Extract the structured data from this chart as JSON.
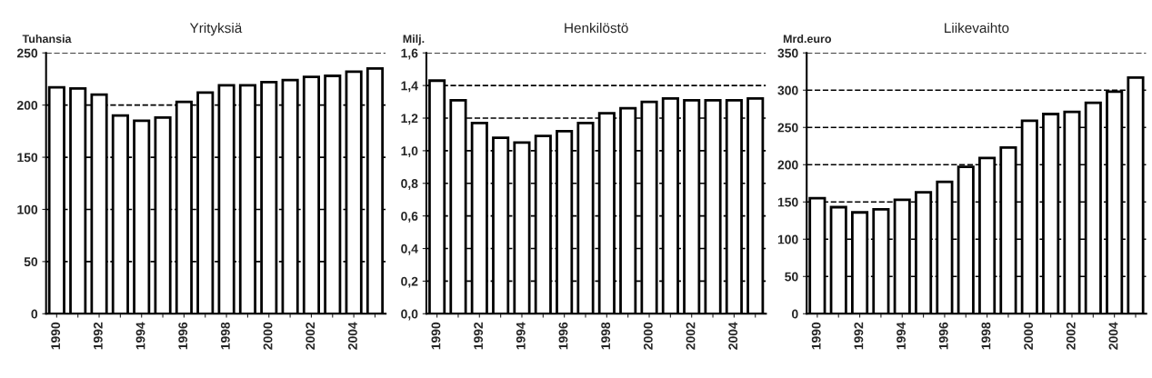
{
  "chart_data": [
    {
      "type": "bar",
      "title": "Yrityksiä",
      "ylabel": "Tuhansia",
      "categories": [
        "1990",
        null,
        "1992",
        null,
        "1994",
        null,
        "1996",
        null,
        "1998",
        null,
        "2000",
        null,
        "2002",
        null,
        "2004",
        null
      ],
      "series": [
        {
          "color": "#ffffff",
          "values": [
            217,
            216,
            210,
            190,
            185,
            188,
            203,
            212,
            219,
            219,
            222,
            224,
            227,
            228,
            232,
            235
          ]
        }
      ],
      "ylim": [
        0,
        250
      ],
      "yticks": [
        0,
        50,
        100,
        150,
        200,
        250
      ],
      "grid": "y",
      "line_style": "dashed"
    },
    {
      "type": "bar",
      "title": "Henkilöstö",
      "ylabel": "Milj.",
      "categories": [
        "1990",
        null,
        "1992",
        null,
        "1994",
        null,
        "1996",
        null,
        "1998",
        null,
        "2000",
        null,
        "2002",
        null,
        "2004",
        null
      ],
      "series": [
        {
          "color": "#ffffff",
          "values": [
            1.43,
            1.31,
            1.17,
            1.08,
            1.05,
            1.09,
            1.12,
            1.17,
            1.23,
            1.26,
            1.3,
            1.32,
            1.31,
            1.31,
            1.31,
            1.32
          ]
        }
      ],
      "ylim": [
        0,
        1.6
      ],
      "yticks": [
        {
          "value": 0,
          "label": "0,0"
        },
        {
          "value": 0.2,
          "label": "0,2"
        },
        {
          "value": 0.4,
          "label": "0,4"
        },
        {
          "value": 0.6,
          "label": "0,6"
        },
        {
          "value": 0.8,
          "label": "0,8"
        },
        {
          "value": 1.0,
          "label": "1,0"
        },
        {
          "value": 1.2,
          "label": "1,2"
        },
        {
          "value": 1.4,
          "label": "1,4"
        },
        {
          "value": 1.6,
          "label": "1,6"
        }
      ],
      "grid": "y",
      "line_style": "dashed"
    },
    {
      "type": "bar",
      "title": "Liikevaihto",
      "ylabel": "Mrd.euro",
      "categories": [
        "1990",
        null,
        "1992",
        null,
        "1994",
        null,
        "1996",
        null,
        "1998",
        null,
        "2000",
        null,
        "2002",
        null,
        "2004",
        null
      ],
      "series": [
        {
          "color": "#ffffff",
          "values": [
            155,
            143,
            136,
            140,
            153,
            163,
            177,
            197,
            209,
            223,
            259,
            268,
            271,
            283,
            298,
            317
          ]
        }
      ],
      "ylim": [
        0,
        350
      ],
      "yticks": [
        0,
        50,
        100,
        150,
        200,
        250,
        300,
        350
      ],
      "grid": "y",
      "line_style": "dashed"
    }
  ]
}
